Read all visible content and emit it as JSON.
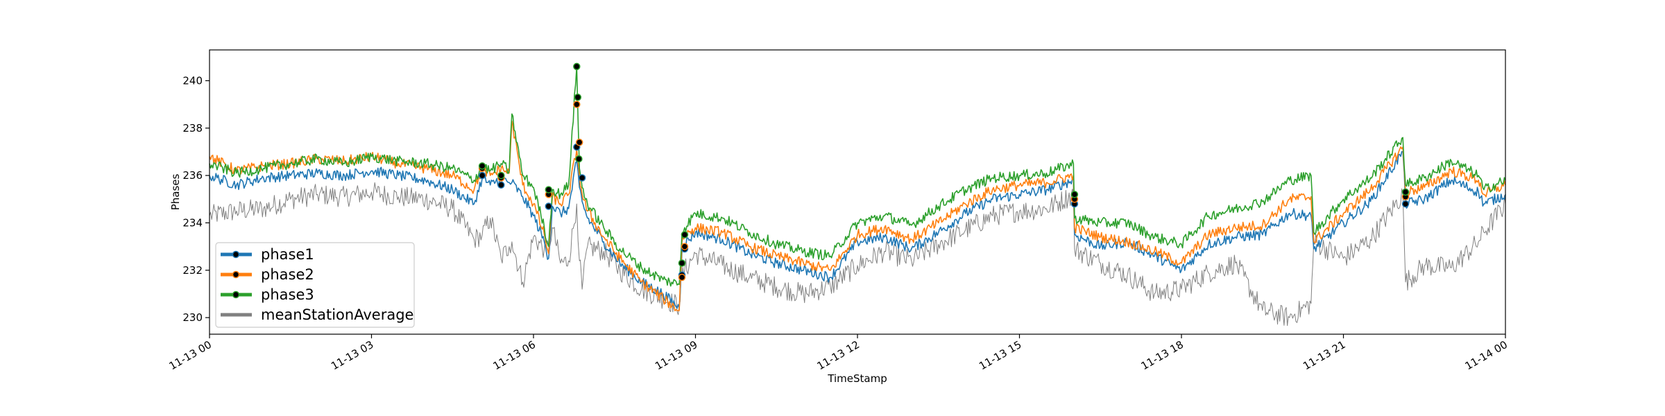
{
  "chart_data": {
    "type": "line",
    "title": "",
    "xlabel": "TimeStamp",
    "ylabel": "Phases",
    "x_ticks": [
      "11-13 00",
      "11-13 03",
      "11-13 06",
      "11-13 09",
      "11-13 12",
      "11-13 15",
      "11-13 18",
      "11-13 21",
      "11-14 00"
    ],
    "x_range_hours": [
      0,
      24
    ],
    "y_ticks": [
      "230",
      "232",
      "234",
      "236",
      "238",
      "240"
    ],
    "y_range": [
      229.3,
      241.3
    ],
    "grid": false,
    "legend_position": "lower-left",
    "x_hours": [
      0,
      0.5,
      1,
      1.5,
      2,
      2.5,
      3,
      3.5,
      4,
      4.5,
      4.9,
      5.05,
      5.2,
      5.4,
      5.55,
      5.6,
      5.8,
      6.0,
      6.2,
      6.28,
      6.35,
      6.5,
      6.65,
      6.8,
      6.85,
      6.9,
      7.0,
      7.3,
      7.6,
      8.0,
      8.4,
      8.7,
      8.75,
      8.8,
      9.0,
      9.5,
      10,
      10.5,
      11,
      11.5,
      12,
      12.5,
      13,
      13.5,
      14,
      14.5,
      15,
      15.5,
      16.0,
      16.02,
      16.5,
      17,
      17.5,
      18,
      18.5,
      19,
      19.5,
      20,
      20.4,
      20.45,
      21,
      21.5,
      22.1,
      22.15,
      22.5,
      23,
      23.5,
      23.6,
      24
    ],
    "series": [
      {
        "name": "phase1",
        "color": "#1f77b4",
        "values": [
          236.0,
          235.6,
          235.9,
          236.0,
          236.1,
          236.0,
          236.2,
          236.0,
          235.8,
          235.4,
          234.8,
          235.9,
          235.6,
          235.9,
          235.7,
          235.7,
          235.1,
          234.3,
          233.2,
          232.5,
          234.7,
          234.4,
          234.6,
          236.6,
          235.5,
          234.9,
          234.2,
          233.2,
          232.3,
          231.5,
          231.0,
          230.4,
          232.8,
          233.1,
          233.6,
          233.3,
          232.7,
          232.3,
          232.0,
          231.7,
          233.2,
          233.4,
          232.9,
          233.6,
          234.4,
          235.0,
          235.2,
          235.4,
          235.8,
          233.5,
          233.0,
          233.2,
          232.6,
          232.0,
          233.1,
          233.4,
          233.5,
          234.4,
          234.3,
          232.9,
          234.0,
          234.9,
          237.0,
          234.8,
          235.0,
          235.8,
          235.3,
          234.8,
          235.2
        ]
      },
      {
        "name": "phase2",
        "color": "#ff7f0e",
        "values": [
          236.8,
          236.2,
          236.4,
          236.5,
          236.7,
          236.6,
          236.8,
          236.5,
          236.3,
          236.0,
          235.4,
          236.3,
          236.0,
          236.3,
          236.1,
          238.3,
          235.6,
          234.8,
          233.5,
          232.7,
          235.1,
          234.8,
          235.2,
          237.1,
          236.0,
          235.2,
          234.5,
          233.4,
          232.5,
          231.5,
          230.8,
          230.3,
          233.2,
          233.5,
          233.8,
          233.6,
          233.0,
          232.6,
          232.3,
          232.0,
          233.5,
          233.8,
          233.3,
          234.0,
          234.8,
          235.4,
          235.6,
          235.7,
          236.0,
          233.8,
          233.4,
          233.2,
          232.8,
          232.3,
          233.5,
          233.8,
          233.9,
          235.0,
          235.1,
          233.2,
          234.4,
          235.4,
          237.2,
          235.3,
          235.5,
          236.2,
          235.8,
          235.2,
          235.6
        ]
      },
      {
        "name": "phase3",
        "color": "#2ca02c",
        "values": [
          236.5,
          236.1,
          236.3,
          236.5,
          236.7,
          236.5,
          236.8,
          236.6,
          236.5,
          236.3,
          235.8,
          236.4,
          236.2,
          236.5,
          236.2,
          238.6,
          236.0,
          235.5,
          233.8,
          233.0,
          235.4,
          235.2,
          235.6,
          240.6,
          236.3,
          235.5,
          234.8,
          233.8,
          232.9,
          232.1,
          231.6,
          231.4,
          233.5,
          233.8,
          234.4,
          234.2,
          233.6,
          233.1,
          232.8,
          232.6,
          234.0,
          234.3,
          233.9,
          234.7,
          235.4,
          235.9,
          236.0,
          236.1,
          236.5,
          234.2,
          234.0,
          234.0,
          233.4,
          233.1,
          234.3,
          234.6,
          234.9,
          235.8,
          236.0,
          233.6,
          235.0,
          235.9,
          237.6,
          235.6,
          235.9,
          236.6,
          236.0,
          235.4,
          235.8
        ]
      },
      {
        "name": "meanStationAverage",
        "color": "#808080",
        "values": [
          234.3,
          234.5,
          234.6,
          235.0,
          235.2,
          235.1,
          235.3,
          235.1,
          235.0,
          234.6,
          233.3,
          233.5,
          234.2,
          232.5,
          233.0,
          233.2,
          231.5,
          233.4,
          232.9,
          233.0,
          233.8,
          232.3,
          232.4,
          234.8,
          232.4,
          231.2,
          233.0,
          232.8,
          232.0,
          231.2,
          230.8,
          230.5,
          231.8,
          232.0,
          232.7,
          232.2,
          231.7,
          231.3,
          231.0,
          231.3,
          232.2,
          232.8,
          232.4,
          233.1,
          233.7,
          234.3,
          234.5,
          234.6,
          235.2,
          232.9,
          232.3,
          231.8,
          231.0,
          231.2,
          231.9,
          232.3,
          230.3,
          230.0,
          230.6,
          233.2,
          232.5,
          233.3,
          235.2,
          231.5,
          232.2,
          232.1,
          233.2,
          233.6,
          234.8
        ]
      }
    ],
    "markers": {
      "phase1": [
        {
          "x": 5.05,
          "y": 236.0
        },
        {
          "x": 5.4,
          "y": 235.6
        },
        {
          "x": 6.28,
          "y": 234.7
        },
        {
          "x": 6.8,
          "y": 237.2
        },
        {
          "x": 6.9,
          "y": 235.9
        },
        {
          "x": 8.75,
          "y": 231.8
        },
        {
          "x": 8.8,
          "y": 232.9
        },
        {
          "x": 16.02,
          "y": 234.8
        },
        {
          "x": 22.15,
          "y": 234.8
        }
      ],
      "phase2": [
        {
          "x": 5.05,
          "y": 236.3
        },
        {
          "x": 5.4,
          "y": 235.9
        },
        {
          "x": 6.28,
          "y": 235.2
        },
        {
          "x": 6.8,
          "y": 239.0
        },
        {
          "x": 6.85,
          "y": 237.4
        },
        {
          "x": 8.75,
          "y": 231.7
        },
        {
          "x": 8.8,
          "y": 233.0
        },
        {
          "x": 16.02,
          "y": 235.0
        },
        {
          "x": 22.15,
          "y": 235.1
        }
      ],
      "phase3": [
        {
          "x": 5.05,
          "y": 236.4
        },
        {
          "x": 5.4,
          "y": 236.0
        },
        {
          "x": 6.28,
          "y": 235.4
        },
        {
          "x": 6.8,
          "y": 240.6
        },
        {
          "x": 6.82,
          "y": 239.3
        },
        {
          "x": 6.84,
          "y": 236.7
        },
        {
          "x": 8.75,
          "y": 232.3
        },
        {
          "x": 8.8,
          "y": 233.5
        },
        {
          "x": 16.02,
          "y": 235.2
        },
        {
          "x": 22.15,
          "y": 235.3
        }
      ]
    }
  }
}
